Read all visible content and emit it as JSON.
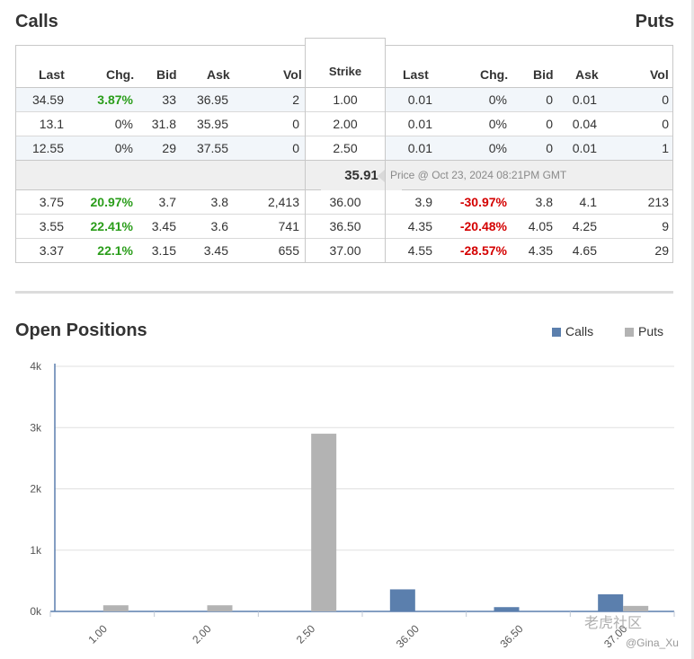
{
  "headers": {
    "calls": "Calls",
    "puts": "Puts"
  },
  "columns": {
    "calls": [
      "Last",
      "Chg.",
      "Bid",
      "Ask",
      "Vol"
    ],
    "strike": "Strike",
    "puts": [
      "Last",
      "Chg.",
      "Bid",
      "Ask",
      "Vol"
    ]
  },
  "rows_top": [
    {
      "calls": [
        "34.59",
        "3.87%",
        "33",
        "36.95",
        "2"
      ],
      "strike": "1.00",
      "puts": [
        "0.01",
        "0%",
        "0",
        "0.01",
        "0"
      ]
    },
    {
      "calls": [
        "13.1",
        "0%",
        "31.8",
        "35.95",
        "0"
      ],
      "strike": "2.00",
      "puts": [
        "0.01",
        "0%",
        "0",
        "0.04",
        "0"
      ]
    },
    {
      "calls": [
        "12.55",
        "0%",
        "29",
        "37.55",
        "0"
      ],
      "strike": "2.50",
      "puts": [
        "0.01",
        "0%",
        "0",
        "0.01",
        "1"
      ]
    }
  ],
  "price": {
    "value": "35.91",
    "note": "Price @ Oct 23, 2024 08:21PM GMT"
  },
  "rows_bottom": [
    {
      "calls": [
        "3.75",
        "20.97%",
        "3.7",
        "3.8",
        "2,413"
      ],
      "strike": "36.00",
      "puts": [
        "3.9",
        "-30.97%",
        "3.8",
        "4.1",
        "213"
      ]
    },
    {
      "calls": [
        "3.55",
        "22.41%",
        "3.45",
        "3.6",
        "741"
      ],
      "strike": "36.50",
      "puts": [
        "4.35",
        "-20.48%",
        "4.05",
        "4.25",
        "9"
      ]
    },
    {
      "calls": [
        "3.37",
        "22.1%",
        "3.15",
        "3.45",
        "655"
      ],
      "strike": "37.00",
      "puts": [
        "4.55",
        "-28.57%",
        "4.35",
        "4.65",
        "29"
      ]
    }
  ],
  "chart_title": "Open Positions",
  "legend": {
    "calls": "Calls",
    "puts": "Puts"
  },
  "colors": {
    "calls": "#5b7fad",
    "puts": "#b3b3b3",
    "positive": "#2a9d1a",
    "negative": "#d40000",
    "axis": "#5b7fad"
  },
  "chart_data": {
    "type": "bar",
    "title": "Open Positions",
    "categories": [
      "1.00",
      "2.00",
      "2.50",
      "36.00",
      "36.50",
      "37.00"
    ],
    "series": [
      {
        "name": "Calls",
        "values": [
          0,
          0,
          0,
          360,
          70,
          280
        ]
      },
      {
        "name": "Puts",
        "values": [
          100,
          100,
          2900,
          0,
          0,
          90
        ]
      }
    ],
    "yticks": [
      "0k",
      "1k",
      "2k",
      "3k",
      "4k"
    ],
    "ylim": [
      0,
      4000
    ],
    "grid": true,
    "legend_position": "top-right"
  },
  "watermark": {
    "line1": "老虎社区",
    "line2": "@Gina_Xu"
  }
}
